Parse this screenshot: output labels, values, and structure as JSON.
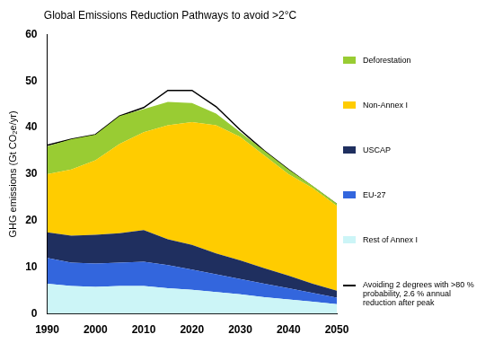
{
  "chart_data": {
    "type": "area",
    "title": "Global Emissions Reduction Pathways to avoid >2°C",
    "y_label": "GHG emissions (Gt CO₂e/yr)",
    "x": [
      1990,
      1995,
      2000,
      2005,
      2010,
      2015,
      2020,
      2025,
      2030,
      2035,
      2040,
      2045,
      2050
    ],
    "series": [
      {
        "name": "Deforestation",
        "type": "area",
        "color": "#99cc33",
        "values": [
          6,
          6.5,
          5.5,
          6,
          5,
          5,
          4.1,
          2.5,
          1,
          1,
          1,
          0.5,
          0.5
        ]
      },
      {
        "name": "Non-Annex I",
        "type": "area",
        "color": "#ffcc00",
        "values": [
          12.5,
          14.2,
          16,
          19.2,
          21,
          24.5,
          26.4,
          27.5,
          26.5,
          24.2,
          21.8,
          20.5,
          18.2
        ]
      },
      {
        "name": "USCAP",
        "type": "area",
        "color": "#1f2f5f",
        "values": [
          5.5,
          5.8,
          6.2,
          6.3,
          6.8,
          5.5,
          5.3,
          4.5,
          4,
          3.3,
          2.7,
          2,
          1.5
        ]
      },
      {
        "name": "EU-27",
        "type": "area",
        "color": "#3366dd",
        "values": [
          5.5,
          5,
          5,
          5,
          5.2,
          5,
          4.3,
          3.8,
          3.3,
          2.9,
          2.4,
          1.9,
          1.4
        ]
      },
      {
        "name": "Rest of Annex I",
        "type": "area",
        "color": "#ccf5f7",
        "values": [
          6.5,
          6,
          5.8,
          6,
          6,
          5.5,
          5.2,
          4.7,
          4.2,
          3.6,
          3.1,
          2.6,
          2.1
        ]
      },
      {
        "name": "Avoiding 2 degrees with >80 % probability, 2.6 % annual reduction after peak",
        "type": "line",
        "color": "#000000",
        "line_style": "solid",
        "values": [
          36.2,
          37.5,
          38.5,
          42.5,
          44.3,
          48,
          48,
          44.5,
          39.5,
          35,
          31,
          27.3,
          23.5
        ]
      }
    ],
    "xlim": [
      1990,
      2050
    ],
    "xticks": [
      1990,
      2000,
      2010,
      2020,
      2030,
      2040,
      2050
    ],
    "ylim": [
      0,
      60
    ],
    "yticks": [
      0,
      10,
      20,
      30,
      40,
      50,
      60
    ],
    "stacked": true,
    "grid": false,
    "legend": "right"
  }
}
